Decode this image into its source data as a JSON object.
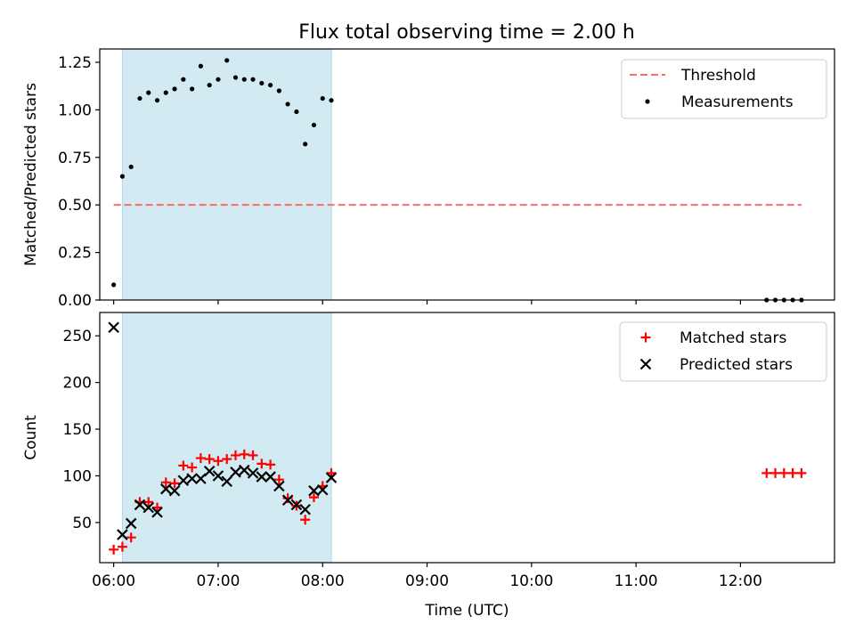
{
  "chart_data": [
    {
      "type": "scatter",
      "title": "Flux total observing time = 2.00 h",
      "xlabel": "",
      "ylabel": "Matched/Predicted stars",
      "xlim": [
        "05:52",
        "12:54"
      ],
      "ylim": [
        0,
        1.32
      ],
      "yticks": [
        0,
        0.25,
        0.5,
        0.75,
        1.0,
        1.25
      ],
      "ytick_labels": [
        "0.00",
        "0.25",
        "0.50",
        "0.75",
        "1.00",
        "1.25"
      ],
      "xticks": [
        "06:00",
        "07:00",
        "08:00",
        "09:00",
        "10:00",
        "11:00",
        "12:00"
      ],
      "show_xtick_labels": false,
      "grid": false,
      "legend_position": "upper right",
      "shaded_span": {
        "start": "06:05",
        "end": "08:05",
        "color": "#add8e6"
      },
      "threshold": {
        "name": "Threshold",
        "y": 0.5,
        "x_start": "06:00",
        "x_end": "12:35",
        "color": "#ff6b6b",
        "style": "dashed"
      },
      "series": [
        {
          "name": "Measurements",
          "marker": "dot",
          "color": "#000000",
          "points": [
            [
              "06:00",
              0.08
            ],
            [
              "06:05",
              0.65
            ],
            [
              "06:10",
              0.7
            ],
            [
              "06:15",
              1.06
            ],
            [
              "06:20",
              1.09
            ],
            [
              "06:25",
              1.05
            ],
            [
              "06:30",
              1.09
            ],
            [
              "06:35",
              1.11
            ],
            [
              "06:40",
              1.16
            ],
            [
              "06:45",
              1.11
            ],
            [
              "06:50",
              1.23
            ],
            [
              "06:55",
              1.13
            ],
            [
              "07:00",
              1.16
            ],
            [
              "07:05",
              1.26
            ],
            [
              "07:10",
              1.17
            ],
            [
              "07:15",
              1.16
            ],
            [
              "07:20",
              1.16
            ],
            [
              "07:25",
              1.14
            ],
            [
              "07:30",
              1.13
            ],
            [
              "07:35",
              1.1
            ],
            [
              "07:40",
              1.03
            ],
            [
              "07:45",
              0.99
            ],
            [
              "07:50",
              0.82
            ],
            [
              "07:55",
              0.92
            ],
            [
              "08:00",
              1.06
            ],
            [
              "08:05",
              1.05
            ],
            [
              "12:15",
              0.0
            ],
            [
              "12:20",
              0.0
            ],
            [
              "12:25",
              0.0
            ],
            [
              "12:30",
              0.0
            ],
            [
              "12:35",
              0.0
            ]
          ]
        }
      ]
    },
    {
      "type": "scatter",
      "title": "",
      "xlabel": "Time (UTC)",
      "ylabel": "Count",
      "xlim": [
        "05:52",
        "12:54"
      ],
      "ylim": [
        7,
        275
      ],
      "yticks": [
        50,
        100,
        150,
        200,
        250
      ],
      "ytick_labels": [
        "50",
        "100",
        "150",
        "200",
        "250"
      ],
      "xticks": [
        "06:00",
        "07:00",
        "08:00",
        "09:00",
        "10:00",
        "11:00",
        "12:00"
      ],
      "show_xtick_labels": true,
      "grid": false,
      "legend_position": "upper right",
      "shaded_span": {
        "start": "06:05",
        "end": "08:05",
        "color": "#add8e6"
      },
      "series": [
        {
          "name": "Matched stars",
          "marker": "plus",
          "color": "#ff0000",
          "points": [
            [
              "06:00",
              21
            ],
            [
              "06:05",
              24
            ],
            [
              "06:10",
              34
            ],
            [
              "06:15",
              72
            ],
            [
              "06:20",
              72
            ],
            [
              "06:25",
              66
            ],
            [
              "06:30",
              93
            ],
            [
              "06:35",
              92
            ],
            [
              "06:40",
              111
            ],
            [
              "06:45",
              109
            ],
            [
              "06:50",
              119
            ],
            [
              "06:55",
              118
            ],
            [
              "07:00",
              116
            ],
            [
              "07:05",
              118
            ],
            [
              "07:10",
              122
            ],
            [
              "07:15",
              123
            ],
            [
              "07:20",
              122
            ],
            [
              "07:25",
              113
            ],
            [
              "07:30",
              112
            ],
            [
              "07:35",
              96
            ],
            [
              "07:40",
              76
            ],
            [
              "07:45",
              68
            ],
            [
              "07:50",
              53
            ],
            [
              "07:55",
              77
            ],
            [
              "08:00",
              89
            ],
            [
              "08:05",
              103
            ],
            [
              "12:15",
              103
            ],
            [
              "12:20",
              103
            ],
            [
              "12:25",
              103
            ],
            [
              "12:30",
              103
            ],
            [
              "12:35",
              103
            ]
          ]
        },
        {
          "name": "Predicted stars",
          "marker": "x",
          "color": "#000000",
          "points": [
            [
              "06:00",
              259
            ],
            [
              "06:05",
              37
            ],
            [
              "06:10",
              49
            ],
            [
              "06:15",
              69
            ],
            [
              "06:20",
              66
            ],
            [
              "06:25",
              61
            ],
            [
              "06:30",
              86
            ],
            [
              "06:35",
              84
            ],
            [
              "06:40",
              95
            ],
            [
              "06:45",
              97
            ],
            [
              "06:50",
              97
            ],
            [
              "06:55",
              105
            ],
            [
              "07:00",
              100
            ],
            [
              "07:05",
              94
            ],
            [
              "07:10",
              104
            ],
            [
              "07:15",
              106
            ],
            [
              "07:20",
              103
            ],
            [
              "07:25",
              99
            ],
            [
              "07:30",
              99
            ],
            [
              "07:35",
              89
            ],
            [
              "07:40",
              74
            ],
            [
              "07:45",
              69
            ],
            [
              "07:50",
              64
            ],
            [
              "07:55",
              84
            ],
            [
              "08:00",
              85
            ],
            [
              "08:05",
              98
            ]
          ]
        }
      ]
    }
  ]
}
